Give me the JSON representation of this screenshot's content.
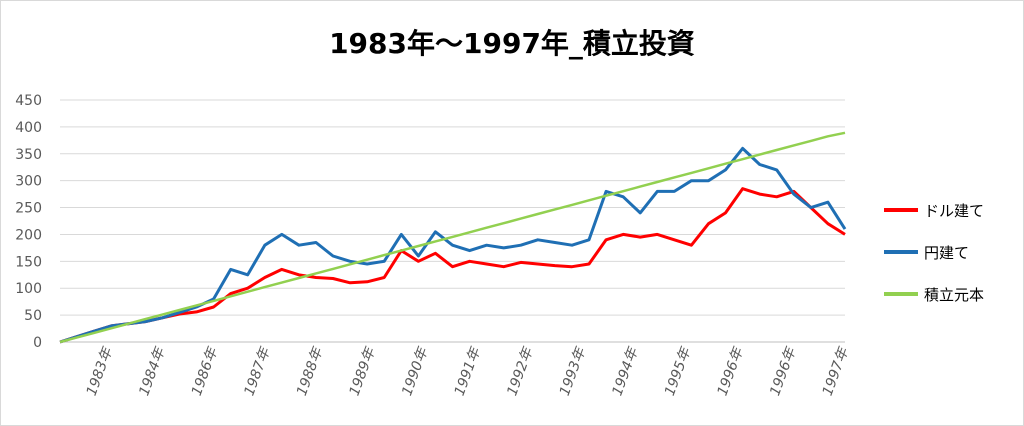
{
  "chart_data": {
    "type": "line",
    "title": "1983年～1997年_積立投資",
    "yticks": [
      "0",
      "50",
      "100",
      "150",
      "200",
      "250",
      "300",
      "350",
      "400",
      "450"
    ],
    "ylim": [
      0,
      450
    ],
    "x_tick_labels": [
      "1983年",
      "1984年",
      "1986年",
      "1987年",
      "1988年",
      "1989年",
      "1990年",
      "1991年",
      "1992年",
      "1993年",
      "1994年",
      "1995年",
      "1996年",
      "1996年",
      "1997年"
    ],
    "grid": true,
    "legend_position": "right",
    "series": [
      {
        "name": "ドル建て",
        "color": "#ff0000",
        "values": [
          0,
          10,
          20,
          30,
          34,
          38,
          45,
          52,
          56,
          65,
          90,
          100,
          120,
          135,
          125,
          120,
          118,
          110,
          112,
          120,
          170,
          150,
          165,
          140,
          150,
          145,
          140,
          148,
          145,
          142,
          140,
          145,
          190,
          200,
          195,
          200,
          190,
          180,
          220,
          240,
          285,
          275,
          270,
          280,
          250,
          220,
          200
        ]
      },
      {
        "name": "円建て",
        "color": "#1f6fb4",
        "values": [
          0,
          10,
          20,
          30,
          34,
          38,
          45,
          55,
          65,
          80,
          135,
          125,
          180,
          200,
          180,
          185,
          160,
          150,
          145,
          150,
          200,
          160,
          205,
          180,
          170,
          180,
          175,
          180,
          190,
          185,
          180,
          190,
          280,
          270,
          240,
          280,
          280,
          300,
          300,
          320,
          360,
          330,
          320,
          275,
          250,
          260,
          210
        ]
      },
      {
        "name": "積立元本",
        "color": "#92d050",
        "values": [
          0,
          8.5,
          17,
          25.5,
          34,
          42.5,
          51,
          59.5,
          68,
          76.5,
          85,
          93.5,
          102,
          110.5,
          119,
          127.5,
          136,
          144.5,
          153,
          161.5,
          170,
          178.5,
          187,
          195.5,
          204,
          212.5,
          221,
          229.5,
          238,
          246.5,
          255,
          263.5,
          272,
          280.5,
          289,
          297.5,
          306,
          314.5,
          323,
          331.5,
          340,
          348.5,
          357,
          365.5,
          374,
          382.5,
          389
        ]
      }
    ]
  }
}
